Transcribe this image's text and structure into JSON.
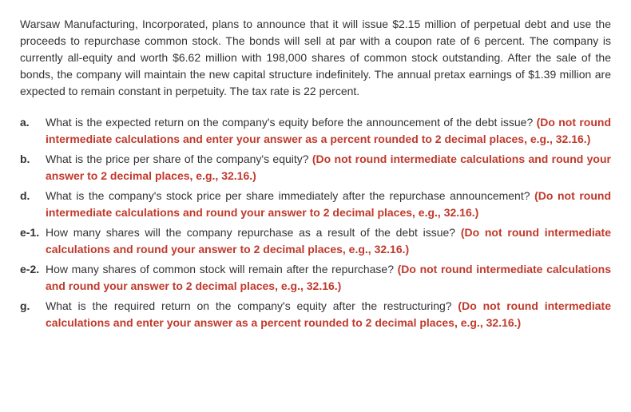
{
  "intro": "Warsaw Manufacturing, Incorporated, plans to announce that it will issue $2.15 million of perpetual debt and use the proceeds to repurchase common stock. The bonds will sell at par with a coupon rate of 6 percent. The company is currently all-equity and worth $6.62 million with 198,000 shares of common stock outstanding. After the sale of the bonds, the company will maintain the new capital structure indefinitely. The annual pretax earnings of $1.39 million are expected to remain constant in perpetuity. The tax rate is 22 percent.",
  "questions": [
    {
      "label": "a.",
      "text": "What is the expected return on the company's equity before the announcement of the debt issue? ",
      "instruction": "(Do not round intermediate calculations and enter your answer as a percent rounded to 2 decimal places, e.g., 32.16.)"
    },
    {
      "label": "b.",
      "text": "What is the price per share of the company's equity? ",
      "instruction": "(Do not round intermediate calculations and round your answer to 2 decimal places, e.g., 32.16.)"
    },
    {
      "label": "d.",
      "text": "What is the company's stock price per share immediately after the repurchase announcement? ",
      "instruction": "(Do not round intermediate calculations and round your answer to 2 decimal places, e.g., 32.16.)"
    },
    {
      "label": "e-1.",
      "text": "How many shares will the company repurchase as a result of the debt issue? ",
      "instruction": "(Do not round intermediate calculations and round your answer to 2 decimal places, e.g., 32.16.)"
    },
    {
      "label": "e-2.",
      "text": "How many shares of common stock will remain after the repurchase? ",
      "instruction": "(Do not round intermediate calculations and round your answer to 2 decimal places, e.g., 32.16.)"
    },
    {
      "label": "g.",
      "text": "What is the required return on the company's equity after the restructuring? ",
      "instruction": "(Do not round intermediate calculations and enter your answer as a percent rounded to 2 decimal places, e.g., 32.16.)"
    }
  ],
  "colors": {
    "text": "#333333",
    "instruction": "#c0392b",
    "background": "#ffffff"
  },
  "fontsize_body": 14
}
